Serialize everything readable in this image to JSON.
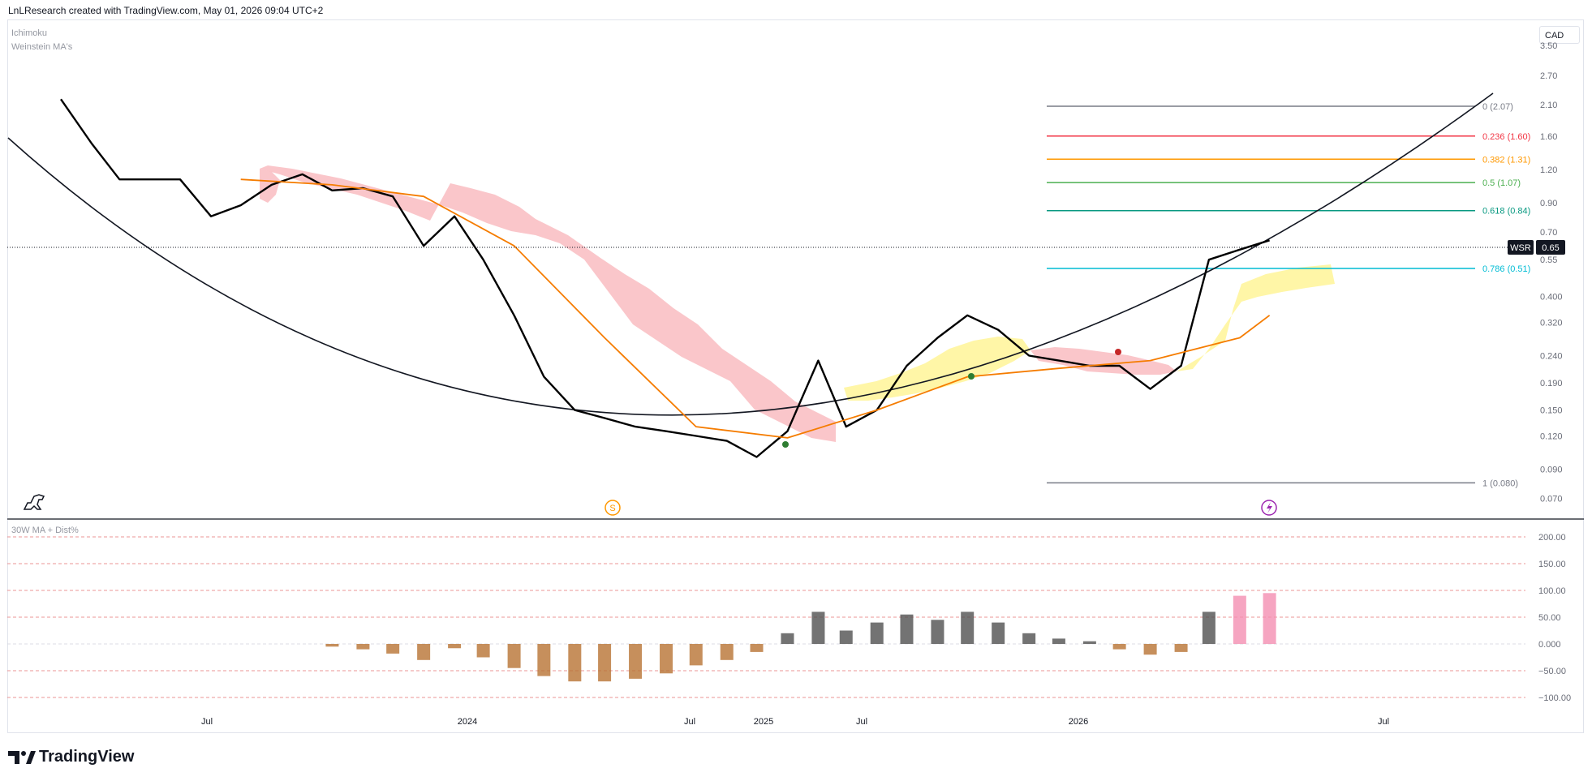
{
  "header": {
    "title": "LnLResearch created with TradingView.com, May 01, 2026 09:04 UTC+2"
  },
  "indicators": {
    "ichimoku": "Ichimoku",
    "weinstein": "Weinstein MA's",
    "lower_pane": "30W MA + Dist%"
  },
  "currency": "CAD",
  "symbol": {
    "name": "WSR",
    "last_price": "0.65"
  },
  "brand": "TradingView",
  "markers": {
    "s_label": "S"
  },
  "colors": {
    "price": "#000000",
    "ma30": "#f57c00",
    "ma_slow": "#ffb74d",
    "cloud_bear": "#f8b3b8",
    "cloud_bull": "#fff59d",
    "hist_neg": "#b87333",
    "hist_pos": "#505050",
    "hist_hot": "#f48fb1"
  },
  "chart_data": [
    {
      "type": "line",
      "title": "WSR",
      "scale": "log",
      "ylim": [
        0.065,
        3.6
      ],
      "y_ticks": [
        "3.50",
        "2.70",
        "2.10",
        "1.60",
        "1.20",
        "0.90",
        "0.70",
        "0.55",
        "0.400",
        "0.320",
        "0.240",
        "0.190",
        "0.150",
        "0.120",
        "0.090",
        "0.070"
      ],
      "x_ticks": [
        "Jul",
        "2024",
        "Jul",
        "2025",
        "Jul",
        "2026",
        "Jul"
      ],
      "series": [
        {
          "name": "WSR",
          "x": [
            "2023-01",
            "2023-02",
            "2023-03",
            "2023-04",
            "2023-05",
            "2023-06",
            "2023-07",
            "2023-08",
            "2023-09",
            "2023-10",
            "2023-11",
            "2023-12",
            "2024-01",
            "2024-02",
            "2024-03",
            "2024-04",
            "2024-05",
            "2024-06",
            "2024-07",
            "2024-08",
            "2024-09",
            "2024-10",
            "2024-11",
            "2024-12",
            "2025-01",
            "2025-02",
            "2025-03",
            "2025-04",
            "2025-05",
            "2025-06",
            "2025-07",
            "2025-08",
            "2025-09",
            "2025-10",
            "2025-11",
            "2025-12",
            "2026-01",
            "2026-02",
            "2026-03",
            "2026-04",
            "2026-05"
          ],
          "y": [
            2.2,
            1.5,
            1.1,
            1.1,
            1.1,
            0.8,
            0.88,
            1.05,
            1.15,
            1.0,
            1.02,
            0.95,
            0.62,
            0.8,
            0.55,
            0.34,
            0.2,
            0.15,
            0.14,
            0.13,
            0.125,
            0.12,
            0.115,
            0.1,
            0.125,
            0.23,
            0.13,
            0.15,
            0.22,
            0.28,
            0.34,
            0.3,
            0.24,
            0.23,
            0.22,
            0.22,
            0.18,
            0.22,
            0.55,
            0.6,
            0.65
          ]
        },
        {
          "name": "30W MA",
          "x": [
            "2023-07",
            "2023-10",
            "2024-01",
            "2024-04",
            "2024-07",
            "2024-10",
            "2025-01",
            "2025-04",
            "2025-07",
            "2025-10",
            "2026-01",
            "2026-04",
            "2026-05"
          ],
          "y": [
            1.1,
            1.05,
            0.95,
            0.62,
            0.28,
            0.13,
            0.118,
            0.15,
            0.2,
            0.215,
            0.23,
            0.28,
            0.34
          ]
        }
      ],
      "annotations": [
        {
          "level": "0",
          "value": 2.07,
          "label": "0 (2.07)",
          "color": "#787b86"
        },
        {
          "level": "0.236",
          "value": 1.6,
          "label": "0.236 (1.60)",
          "color": "#f23645"
        },
        {
          "level": "0.382",
          "value": 1.31,
          "label": "0.382 (1.31)",
          "color": "#ff9800"
        },
        {
          "level": "0.5",
          "value": 1.07,
          "label": "0.5 (1.07)",
          "color": "#4caf50"
        },
        {
          "level": "0.618",
          "value": 0.84,
          "label": "0.618 (0.84)",
          "color": "#089981"
        },
        {
          "level": "0.786",
          "value": 0.51,
          "label": "0.786 (0.51)",
          "color": "#00bcd4"
        },
        {
          "level": "1",
          "value": 0.08,
          "label": "1 (0.080)",
          "color": "#787b86"
        }
      ]
    },
    {
      "type": "bar",
      "title": "30W MA + Dist%",
      "ylim": [
        -110,
        210
      ],
      "y_ticks": [
        "200.00",
        "150.00",
        "100.00",
        "50.00",
        "0.000",
        "−50.00",
        "−100.00"
      ],
      "x": [
        "2023-10",
        "2023-11",
        "2023-12",
        "2024-01",
        "2024-02",
        "2024-03",
        "2024-04",
        "2024-05",
        "2024-06",
        "2024-07",
        "2024-08",
        "2024-09",
        "2024-10",
        "2024-11",
        "2024-12",
        "2025-01",
        "2025-02",
        "2025-03",
        "2025-04",
        "2025-05",
        "2025-06",
        "2025-07",
        "2025-08",
        "2025-09",
        "2025-10",
        "2025-11",
        "2025-12",
        "2026-01",
        "2026-02",
        "2026-03",
        "2026-04",
        "2026-05"
      ],
      "values": [
        -5,
        -10,
        -18,
        -30,
        -8,
        -25,
        -45,
        -60,
        -70,
        -70,
        -65,
        -55,
        -40,
        -30,
        -15,
        20,
        60,
        25,
        40,
        55,
        45,
        60,
        40,
        20,
        10,
        5,
        -10,
        -20,
        -15,
        60,
        90,
        95
      ]
    }
  ]
}
